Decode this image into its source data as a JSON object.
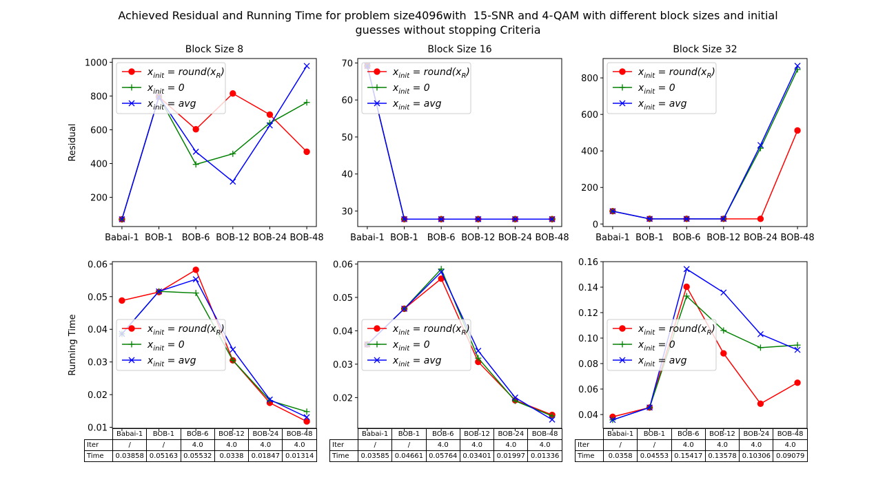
{
  "figure": {
    "title_line1": "Achieved Residual and Running Time for problem size4096with  15-SNR and 4-QAM with different block sizes and initial",
    "title_line2": "guesses without stopping Criteria"
  },
  "legend_labels": {
    "round": [
      "x",
      "init",
      " = round(x",
      "R",
      ")"
    ],
    "zero": [
      "x",
      "init",
      " = 0"
    ],
    "avg": [
      "x",
      "init",
      " = avg"
    ]
  },
  "colors": {
    "round": "#ff0000",
    "zero": "#008000",
    "avg": "#0000ff"
  },
  "chart_data": [
    {
      "type": "line",
      "title": "Block Size 8",
      "ylabel": "Residual",
      "categories": [
        "Babai-1",
        "BOB-1",
        "BOB-6",
        "BOB-12",
        "BOB-24",
        "BOB-48"
      ],
      "ylim": [
        27,
        1022
      ],
      "yticks": [
        200,
        400,
        600,
        800,
        1000
      ],
      "ytick_labels": [
        "200",
        "400",
        "600",
        "800",
        "1000"
      ],
      "legend": "upper-left",
      "series": [
        {
          "key": "round",
          "marker": "circle",
          "values": [
            70,
            795,
            603,
            815,
            690,
            470
          ]
        },
        {
          "key": "zero",
          "marker": "plus",
          "values": [
            70,
            795,
            395,
            458,
            640,
            762
          ]
        },
        {
          "key": "avg",
          "marker": "x",
          "values": [
            70,
            795,
            470,
            293,
            626,
            978
          ]
        }
      ]
    },
    {
      "type": "line",
      "title": "Block Size 16",
      "ylabel": "",
      "categories": [
        "Babai-1",
        "BOB-1",
        "BOB-6",
        "BOB-12",
        "BOB-24",
        "BOB-48"
      ],
      "ylim": [
        25.8,
        71.2
      ],
      "yticks": [
        30,
        40,
        50,
        60,
        70
      ],
      "ytick_labels": [
        "30",
        "40",
        "50",
        "60",
        "70"
      ],
      "legend": "upper-left",
      "series": [
        {
          "key": "round",
          "marker": "circle",
          "values": [
            69.2,
            27.8,
            27.8,
            27.8,
            27.8,
            27.8
          ]
        },
        {
          "key": "zero",
          "marker": "plus",
          "values": [
            69.2,
            27.8,
            27.8,
            27.8,
            27.8,
            27.8
          ]
        },
        {
          "key": "avg",
          "marker": "x",
          "values": [
            69.2,
            27.8,
            27.8,
            27.8,
            27.8,
            27.8
          ]
        }
      ]
    },
    {
      "type": "line",
      "title": "Block Size 32",
      "ylabel": "",
      "categories": [
        "Babai-1",
        "BOB-1",
        "BOB-6",
        "BOB-12",
        "BOB-24",
        "BOB-48"
      ],
      "ylim": [
        -14,
        906
      ],
      "yticks": [
        0,
        200,
        400,
        600,
        800
      ],
      "ytick_labels": [
        "0",
        "200",
        "400",
        "600",
        "800"
      ],
      "legend": "upper-left",
      "series": [
        {
          "key": "round",
          "marker": "circle",
          "values": [
            70,
            28,
            28,
            28,
            28,
            512
          ]
        },
        {
          "key": "zero",
          "marker": "plus",
          "values": [
            70,
            28,
            28,
            28,
            415,
            846
          ]
        },
        {
          "key": "avg",
          "marker": "x",
          "values": [
            70,
            28,
            28,
            28,
            432,
            866
          ]
        }
      ]
    },
    {
      "type": "line",
      "title": "",
      "ylabel": "Running Time",
      "categories": [
        "Babai-1",
        "BOB-1",
        "BOB-6",
        "BOB-12",
        "BOB-24",
        "BOB-48"
      ],
      "ylim": [
        0.0097,
        0.0607
      ],
      "yticks": [
        0.01,
        0.02,
        0.03,
        0.04,
        0.05,
        0.06
      ],
      "ytick_labels": [
        "0.01",
        "0.02",
        "0.03",
        "0.04",
        "0.05",
        "0.06"
      ],
      "legend": "center-left",
      "series": [
        {
          "key": "round",
          "marker": "circle",
          "values": [
            0.0488,
            0.0514,
            0.0582,
            0.0305,
            0.0175,
            0.0118
          ]
        },
        {
          "key": "zero",
          "marker": "plus",
          "values": [
            0.0386,
            0.0516,
            0.0511,
            0.0305,
            0.0182,
            0.0148
          ]
        },
        {
          "key": "avg",
          "marker": "x",
          "values": [
            0.0386,
            0.0516,
            0.0553,
            0.0338,
            0.0185,
            0.0131
          ]
        }
      ],
      "table": {
        "col_labels": [
          "Babai-1",
          "BOB-1",
          "BOB-6",
          "BOB-12",
          "BOB-24",
          "BOB-48"
        ],
        "rows": [
          {
            "label": "Iter",
            "values": [
              "/",
              "/",
              "4.0",
              "4.0",
              "4.0",
              "4.0"
            ]
          },
          {
            "label": "Time",
            "values": [
              "0.03858",
              "0.05163",
              "0.05532",
              "0.0338",
              "0.01847",
              "0.01314"
            ]
          }
        ]
      }
    },
    {
      "type": "line",
      "title": "",
      "ylabel": "",
      "categories": [
        "Babai-1",
        "BOB-1",
        "BOB-6",
        "BOB-12",
        "BOB-24",
        "BOB-48"
      ],
      "ylim": [
        0.0108,
        0.0607
      ],
      "yticks": [
        0.02,
        0.03,
        0.04,
        0.05,
        0.06
      ],
      "ytick_labels": [
        "0.02",
        "0.03",
        "0.04",
        "0.05",
        "0.06"
      ],
      "legend": "center-left",
      "series": [
        {
          "key": "round",
          "marker": "circle",
          "values": [
            0.0359,
            0.0466,
            0.0556,
            0.0307,
            0.0192,
            0.0148
          ]
        },
        {
          "key": "zero",
          "marker": "plus",
          "values": [
            0.0359,
            0.0466,
            0.0585,
            0.0318,
            0.019,
            0.0145
          ]
        },
        {
          "key": "avg",
          "marker": "x",
          "values": [
            0.0359,
            0.0466,
            0.0576,
            0.034,
            0.02,
            0.0134
          ]
        }
      ],
      "table": {
        "col_labels": [
          "Babai-1",
          "BOB-1",
          "BOB-6",
          "BOB-12",
          "BOB-24",
          "BOB-48"
        ],
        "rows": [
          {
            "label": "Iter",
            "values": [
              "/",
              "/",
              "4.0",
              "4.0",
              "4.0",
              "4.0"
            ]
          },
          {
            "label": "Time",
            "values": [
              "0.03585",
              "0.04661",
              "0.05764",
              "0.03401",
              "0.01997",
              "0.01336"
            ]
          }
        ]
      }
    },
    {
      "type": "line",
      "title": "",
      "ylabel": "",
      "categories": [
        "Babai-1",
        "BOB-1",
        "BOB-6",
        "BOB-12",
        "BOB-24",
        "BOB-48"
      ],
      "ylim": [
        0.0292,
        0.16
      ],
      "yticks": [
        0.04,
        0.06,
        0.08,
        0.1,
        0.12,
        0.14,
        0.16
      ],
      "ytick_labels": [
        "0.04",
        "0.06",
        "0.08",
        "0.10",
        "0.12",
        "0.14",
        "0.16"
      ],
      "legend": "center-left",
      "series": [
        {
          "key": "round",
          "marker": "circle",
          "values": [
            0.0382,
            0.0455,
            0.1403,
            0.088,
            0.0485,
            0.065
          ]
        },
        {
          "key": "zero",
          "marker": "plus",
          "values": [
            0.0358,
            0.0455,
            0.133,
            0.106,
            0.0925,
            0.0945
          ]
        },
        {
          "key": "avg",
          "marker": "x",
          "values": [
            0.0358,
            0.0455,
            0.1542,
            0.1358,
            0.1031,
            0.0908
          ]
        }
      ],
      "table": {
        "col_labels": [
          "Babai-1",
          "BOB-1",
          "BOB-6",
          "BOB-12",
          "BOB-24",
          "BOB-48"
        ],
        "rows": [
          {
            "label": "Iter",
            "values": [
              "/",
              "/",
              "4.0",
              "4.0",
              "4.0",
              "4.0"
            ]
          },
          {
            "label": "Time",
            "values": [
              "0.0358",
              "0.04553",
              "0.15417",
              "0.13578",
              "0.10306",
              "0.09079"
            ]
          }
        ]
      }
    }
  ]
}
